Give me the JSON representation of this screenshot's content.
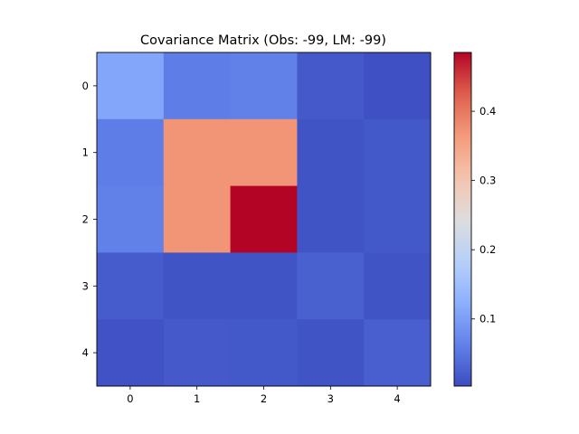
{
  "chart_data": {
    "type": "heatmap",
    "title": "Covariance Matrix (Obs: -99, LM: -99)",
    "x_ticks": [
      "0",
      "1",
      "2",
      "3",
      "4"
    ],
    "y_ticks": [
      "0",
      "1",
      "2",
      "3",
      "4"
    ],
    "values": [
      [
        0.11,
        0.058,
        0.062,
        0.018,
        0.008
      ],
      [
        0.058,
        0.37,
        0.37,
        0.012,
        0.016
      ],
      [
        0.062,
        0.37,
        0.485,
        0.012,
        0.016
      ],
      [
        0.02,
        0.012,
        0.012,
        0.025,
        0.012
      ],
      [
        0.01,
        0.018,
        0.016,
        0.012,
        0.024
      ]
    ],
    "colormap": "coolwarm",
    "color_range": [
      0.003,
      0.485
    ],
    "colorbar_ticks": [
      {
        "value": 0.1,
        "label": "0.1"
      },
      {
        "value": 0.2,
        "label": "0.2"
      },
      {
        "value": 0.3,
        "label": "0.3"
      },
      {
        "value": 0.4,
        "label": "0.4"
      }
    ],
    "grid": false
  }
}
